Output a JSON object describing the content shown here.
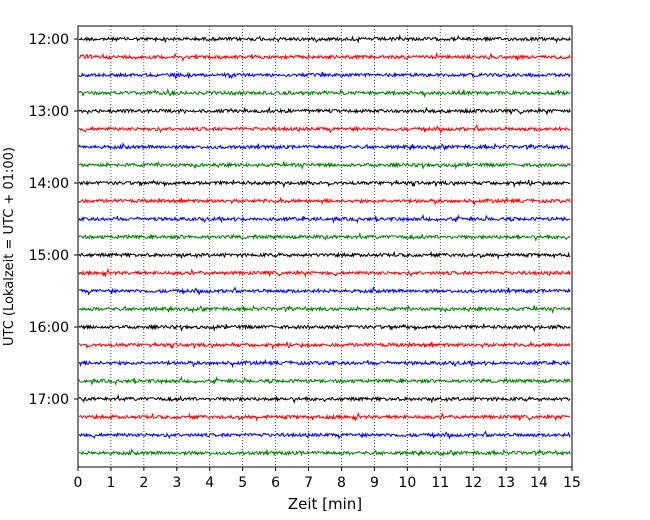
{
  "chart_data": {
    "type": "line",
    "title": "",
    "xlabel": "Zeit  [min]",
    "ylabel": "UTC (Lokalzeit = UTC + 01:00)",
    "xlim": [
      0,
      15
    ],
    "x_ticks": [
      0,
      1,
      2,
      3,
      4,
      5,
      6,
      7,
      8,
      9,
      10,
      11,
      12,
      13,
      14,
      15
    ],
    "y_tick_labels": [
      "12:00",
      "13:00",
      "14:00",
      "15:00",
      "16:00",
      "17:00"
    ],
    "x_grid": true,
    "y_grid": false,
    "legend": "none",
    "trace_colors": [
      "#000000",
      "#ff0000",
      "#0000ff",
      "#008000"
    ],
    "rows": [
      {
        "start": "12:00",
        "color": "#000000"
      },
      {
        "start": "12:15",
        "color": "#ff0000"
      },
      {
        "start": "12:30",
        "color": "#0000ff"
      },
      {
        "start": "12:45",
        "color": "#008000"
      },
      {
        "start": "13:00",
        "color": "#000000"
      },
      {
        "start": "13:15",
        "color": "#ff0000"
      },
      {
        "start": "13:30",
        "color": "#0000ff"
      },
      {
        "start": "13:45",
        "color": "#008000"
      },
      {
        "start": "14:00",
        "color": "#000000"
      },
      {
        "start": "14:15",
        "color": "#ff0000"
      },
      {
        "start": "14:30",
        "color": "#0000ff"
      },
      {
        "start": "14:45",
        "color": "#008000"
      },
      {
        "start": "15:00",
        "color": "#000000"
      },
      {
        "start": "15:15",
        "color": "#ff0000"
      },
      {
        "start": "15:30",
        "color": "#0000ff"
      },
      {
        "start": "15:45",
        "color": "#008000"
      },
      {
        "start": "16:00",
        "color": "#000000"
      },
      {
        "start": "16:15",
        "color": "#ff0000"
      },
      {
        "start": "16:30",
        "color": "#0000ff"
      },
      {
        "start": "16:45",
        "color": "#008000"
      },
      {
        "start": "17:00",
        "color": "#000000"
      },
      {
        "start": "17:15",
        "color": "#ff0000"
      },
      {
        "start": "17:30",
        "color": "#0000ff"
      },
      {
        "start": "17:45",
        "color": "#008000"
      }
    ]
  }
}
